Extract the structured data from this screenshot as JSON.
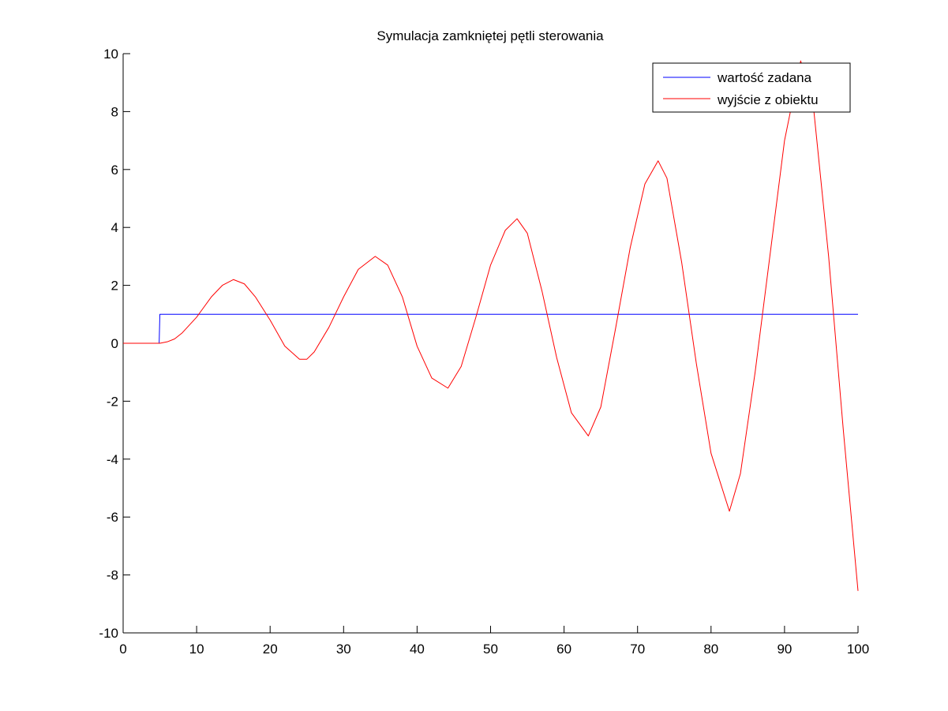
{
  "chart_data": {
    "type": "line",
    "title": "Symulacja zamkniętej pętli sterowania",
    "xlabel": "",
    "ylabel": "",
    "xlim": [
      0,
      100
    ],
    "ylim": [
      -10,
      10
    ],
    "xticks": [
      0,
      10,
      20,
      30,
      40,
      50,
      60,
      70,
      80,
      90,
      100
    ],
    "yticks": [
      -10,
      -8,
      -6,
      -4,
      -2,
      0,
      2,
      4,
      6,
      8,
      10
    ],
    "grid": false,
    "legend": {
      "placement": "top-right"
    },
    "series": [
      {
        "name": "wartość zadana",
        "color": "#0000ff",
        "x": [
          0,
          4.9,
          5,
          100
        ],
        "y": [
          0,
          0,
          1,
          1
        ]
      },
      {
        "name": "wyjście z obiektu",
        "color": "#ff0000",
        "x": [
          0,
          5,
          6,
          7,
          8,
          10,
          12,
          13.5,
          15,
          16.5,
          18,
          20,
          22,
          24,
          25,
          26,
          28,
          30,
          32,
          34.3,
          36,
          38,
          40,
          42,
          44.2,
          46,
          48,
          50,
          52,
          53.6,
          55,
          57,
          59,
          61,
          63.3,
          65,
          67,
          69,
          71,
          72.8,
          74,
          76,
          78,
          80,
          82.5,
          84,
          86,
          88,
          90,
          92.2,
          94,
          96,
          98,
          100
        ],
        "y": [
          0,
          0,
          0.05,
          0.15,
          0.35,
          0.9,
          1.6,
          2.0,
          2.2,
          2.05,
          1.6,
          0.8,
          -0.1,
          -0.55,
          -0.55,
          -0.3,
          0.55,
          1.6,
          2.55,
          3.0,
          2.7,
          1.6,
          -0.1,
          -1.2,
          -1.55,
          -0.8,
          0.9,
          2.7,
          3.9,
          4.3,
          3.8,
          1.8,
          -0.5,
          -2.4,
          -3.2,
          -2.2,
          0.5,
          3.3,
          5.5,
          6.3,
          5.7,
          2.8,
          -0.7,
          -3.8,
          -5.8,
          -4.5,
          -1.0,
          3.0,
          7.0,
          9.75,
          8.0,
          3.0,
          -3.0,
          -8.55
        ]
      }
    ]
  }
}
